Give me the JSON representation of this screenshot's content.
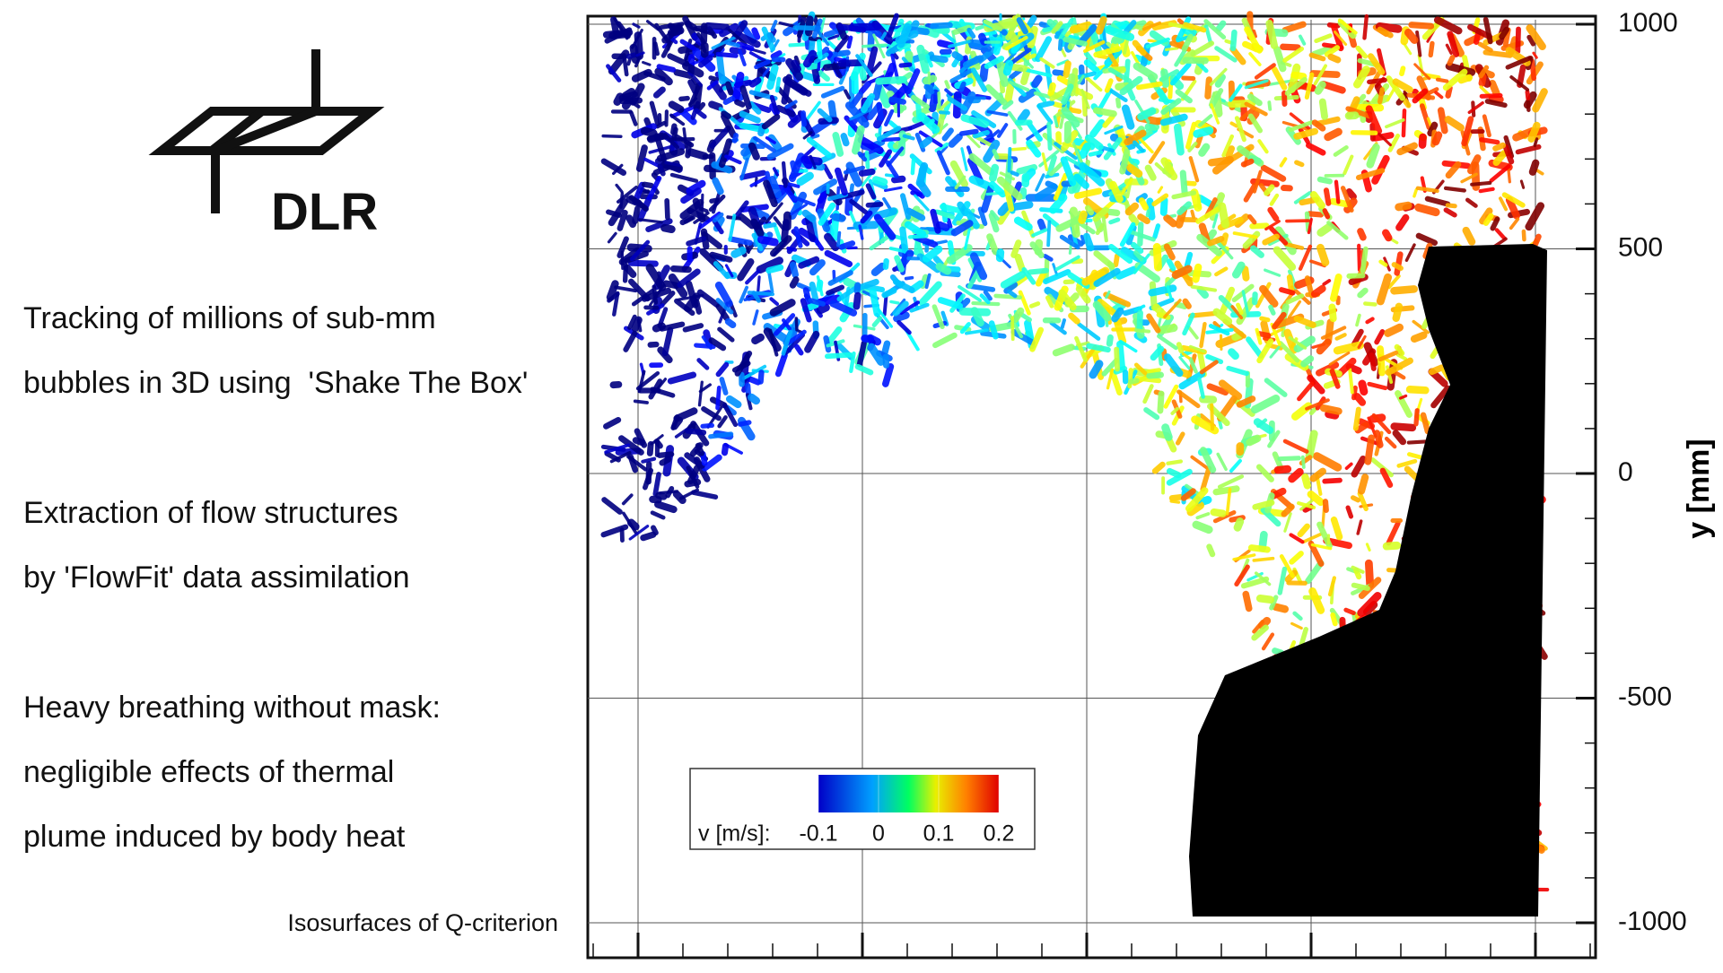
{
  "logo": {
    "text": "DLR"
  },
  "paragraphs": [
    [
      "Tracking of millions of sub-mm",
      "bubbles in 3D using  'Shake The Box'"
    ],
    [
      "Extraction of flow structures",
      "by 'FlowFit' data assimilation"
    ],
    [
      "Heavy breathing without mask:",
      "negligible effects of thermal",
      "plume induced by body heat"
    ]
  ],
  "caption": "Isosurfaces of Q-criterion",
  "axis": {
    "label": "y [mm]",
    "ylim": [
      -1000,
      1000
    ],
    "ticks": [
      1000,
      500,
      0,
      -500,
      -1000
    ]
  },
  "colorbar": {
    "label": "v [m/s]:",
    "clim": [
      -0.1,
      0.2
    ],
    "ticks": [
      -0.1,
      0,
      0.1,
      0.2
    ]
  }
}
